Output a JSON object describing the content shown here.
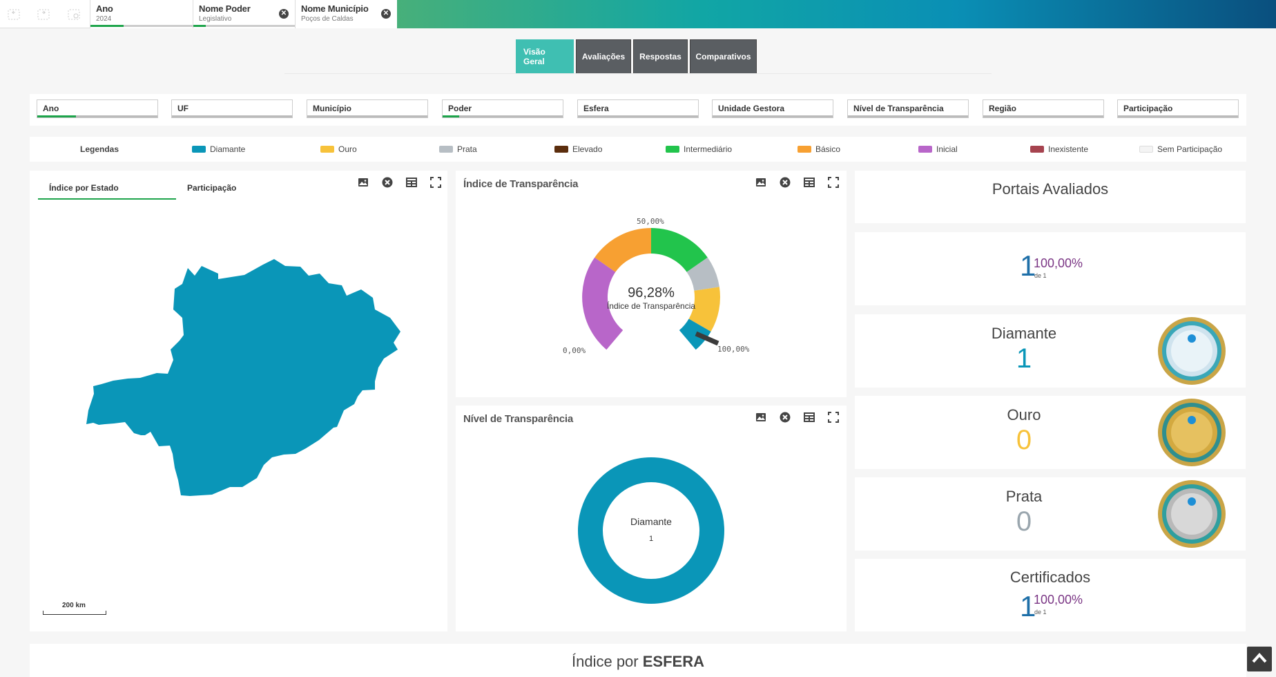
{
  "selections": [
    {
      "title": "Ano",
      "sub": "2024",
      "progress": 0.32,
      "removable": false
    },
    {
      "title": "Nome Poder",
      "sub": "Legislativo",
      "progress": 0.12,
      "removable": true
    },
    {
      "title": "Nome Município",
      "sub": "Poços de Caldas",
      "progress": 0.0,
      "removable": true
    }
  ],
  "tabs": [
    "Visão Geral",
    "Avaliações",
    "Respostas",
    "Comparativos"
  ],
  "active_tab": 0,
  "filters": [
    {
      "label": "Ano",
      "progress": 0.32
    },
    {
      "label": "UF",
      "progress": 0.0
    },
    {
      "label": "Município",
      "progress": 0.0
    },
    {
      "label": "Poder",
      "progress": 0.14
    },
    {
      "label": "Esfera",
      "progress": 0.0
    },
    {
      "label": "Unidade Gestora",
      "progress": 0.0
    },
    {
      "label": "Nível de Transparência",
      "progress": 0.0
    },
    {
      "label": "Região",
      "progress": 0.0
    },
    {
      "label": "Participação",
      "progress": 0.0
    }
  ],
  "legend": {
    "title": "Legendas",
    "items": [
      {
        "label": "Diamante",
        "color": "#0a96b8"
      },
      {
        "label": "Ouro",
        "color": "#f7c23a"
      },
      {
        "label": "Prata",
        "color": "#b7bec4"
      },
      {
        "label": "Elevado",
        "color": "#5b2d0d"
      },
      {
        "label": "Intermediário",
        "color": "#22c44c"
      },
      {
        "label": "Básico",
        "color": "#f7a032"
      },
      {
        "label": "Inicial",
        "color": "#b866c9"
      },
      {
        "label": "Inexistente",
        "color": "#a6434f"
      },
      {
        "label": "Sem Participação",
        "color": "#f2f2f2"
      }
    ]
  },
  "map_panel": {
    "tabs": [
      "Índice por Estado",
      "Participação"
    ],
    "scale_label": "200 km",
    "fill_color": "#0a96b8"
  },
  "gauge_panel": {
    "title": "Índice de Transparência",
    "value_label": "96,28%",
    "caption": "Índice de Transparência",
    "label_min": "0,00%",
    "label_mid": "50,00%",
    "label_max": "100,00%"
  },
  "level_panel": {
    "title": "Nível de Transparência",
    "center_label": "Diamante",
    "center_value": "1"
  },
  "summary": {
    "portais_title": "Portais Avaliados",
    "portais_count": "1",
    "portais_pct": "100,00%",
    "portais_of": "de 1",
    "diamante_label": "Diamante",
    "diamante_count": "1",
    "ouro_label": "Ouro",
    "ouro_count": "0",
    "prata_label": "Prata",
    "prata_count": "0",
    "cert_title": "Certificados",
    "cert_count": "1",
    "cert_pct": "100,00%",
    "cert_of": "de 1"
  },
  "bottom": {
    "prefix": "Índice por ",
    "strong": "ESFERA"
  },
  "icons": [
    "undo-icon",
    "redo-icon",
    "clear-selections-icon",
    "image-icon",
    "close-icon",
    "table-icon",
    "fullscreen-icon",
    "chevron-up-icon"
  ]
}
